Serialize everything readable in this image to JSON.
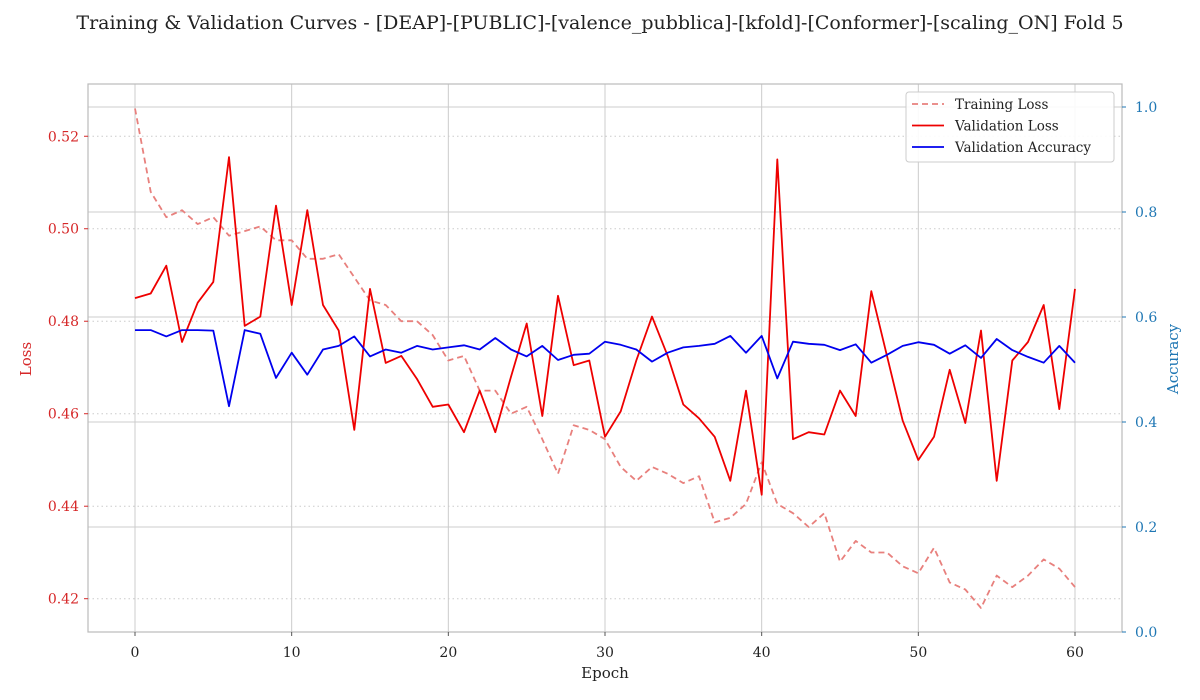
{
  "chart_data": {
    "type": "line",
    "title": "Training & Validation Curves - [DEAP]-[PUBLIC]-[valence_pubblica]-[kfold]-[Conformer]-[scaling_ON] Fold 5",
    "xlabel": "Epoch",
    "ylabel_left": "Loss",
    "ylabel_right": "Accuracy",
    "xlim": [
      -3,
      63
    ],
    "ylim_left": [
      0.4128,
      0.5313
    ],
    "ylim_right": [
      0.0,
      1.0438
    ],
    "x_ticks": [
      0,
      10,
      20,
      30,
      40,
      50,
      60
    ],
    "y_ticks_left": [
      0.42,
      0.44,
      0.46,
      0.48,
      0.5,
      0.52
    ],
    "y_tick_labels_left": [
      "0.42",
      "0.44",
      "0.46",
      "0.48",
      "0.50",
      "0.52"
    ],
    "y_ticks_right": [
      0.0,
      0.2,
      0.4,
      0.6,
      0.8,
      1.0
    ],
    "y_tick_labels_right": [
      "0.0",
      "0.2",
      "0.4",
      "0.6",
      "0.8",
      "1.0"
    ],
    "grid": true,
    "legend_position": "top-right",
    "colors": {
      "loss_axis": "#d62728",
      "accuracy_axis": "#1f77b4",
      "training_loss": "#e8807d",
      "validation_loss": "#ee0000",
      "validation_accuracy": "#0000ee",
      "grid_major": "#cccccc",
      "grid_minor": "#cccccc",
      "spine": "#bbbbbb"
    },
    "x": [
      0,
      1,
      2,
      3,
      4,
      5,
      6,
      7,
      8,
      9,
      10,
      11,
      12,
      13,
      14,
      15,
      16,
      17,
      18,
      19,
      20,
      21,
      22,
      23,
      24,
      25,
      26,
      27,
      28,
      29,
      30,
      31,
      32,
      33,
      34,
      35,
      36,
      37,
      38,
      39,
      40,
      41,
      42,
      43,
      44,
      45,
      46,
      47,
      48,
      49,
      50,
      51,
      52,
      53,
      54,
      55,
      56,
      57,
      58,
      59,
      60
    ],
    "series": [
      {
        "name": "Training Loss",
        "axis": "left",
        "style": "dashed",
        "values": [
          0.526,
          0.508,
          0.5025,
          0.504,
          0.501,
          0.5025,
          0.4985,
          0.4995,
          0.5005,
          0.4975,
          0.4975,
          0.4935,
          0.4935,
          0.4945,
          0.4895,
          0.4845,
          0.4835,
          0.48,
          0.48,
          0.477,
          0.4715,
          0.4725,
          0.465,
          0.465,
          0.46,
          0.4615,
          0.4545,
          0.447,
          0.4575,
          0.4565,
          0.4545,
          0.4485,
          0.4455,
          0.4485,
          0.447,
          0.445,
          0.4465,
          0.4365,
          0.4375,
          0.4405,
          0.4495,
          0.4405,
          0.4385,
          0.4355,
          0.4385,
          0.428,
          0.4325,
          0.43,
          0.43,
          0.427,
          0.4255,
          0.431,
          0.4235,
          0.422,
          0.418,
          0.425,
          0.4225,
          0.425,
          0.4285,
          0.4265,
          0.4225
        ]
      },
      {
        "name": "Validation Loss",
        "axis": "left",
        "style": "solid",
        "values": [
          0.485,
          0.486,
          0.492,
          0.4755,
          0.484,
          0.4885,
          0.5155,
          0.479,
          0.481,
          0.505,
          0.4835,
          0.504,
          0.4835,
          0.478,
          0.4565,
          0.487,
          0.471,
          0.4725,
          0.4675,
          0.4615,
          0.462,
          0.456,
          0.465,
          0.456,
          0.468,
          0.4795,
          0.4595,
          0.4855,
          0.4705,
          0.4715,
          0.455,
          0.4605,
          0.4715,
          0.481,
          0.4725,
          0.462,
          0.459,
          0.455,
          0.4455,
          0.465,
          0.4425,
          0.515,
          0.4545,
          0.456,
          0.4555,
          0.465,
          0.4595,
          0.4865,
          0.4725,
          0.4585,
          0.45,
          0.455,
          0.4695,
          0.458,
          0.478,
          0.4455,
          0.4715,
          0.4755,
          0.4835,
          0.461,
          0.487
        ]
      },
      {
        "name": "Validation Accuracy",
        "axis": "right",
        "style": "solid",
        "values": [
          0.575,
          0.575,
          0.563,
          0.575,
          0.575,
          0.574,
          0.43,
          0.575,
          0.568,
          0.484,
          0.532,
          0.49,
          0.538,
          0.545,
          0.563,
          0.525,
          0.538,
          0.532,
          0.545,
          0.538,
          0.542,
          0.546,
          0.538,
          0.56,
          0.538,
          0.525,
          0.545,
          0.518,
          0.528,
          0.53,
          0.553,
          0.547,
          0.538,
          0.515,
          0.532,
          0.542,
          0.545,
          0.549,
          0.564,
          0.532,
          0.564,
          0.483,
          0.553,
          0.549,
          0.547,
          0.537,
          0.548,
          0.513,
          0.528,
          0.545,
          0.552,
          0.547,
          0.53,
          0.546,
          0.522,
          0.558,
          0.537,
          0.524,
          0.513,
          0.545,
          0.513
        ]
      }
    ]
  }
}
